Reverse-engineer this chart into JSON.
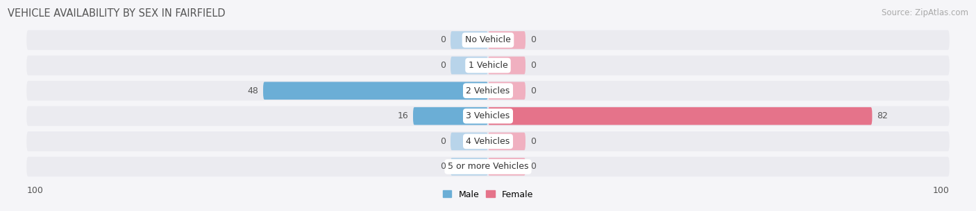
{
  "title": "VEHICLE AVAILABILITY BY SEX IN FAIRFIELD",
  "source": "Source: ZipAtlas.com",
  "categories": [
    "No Vehicle",
    "1 Vehicle",
    "2 Vehicles",
    "3 Vehicles",
    "4 Vehicles",
    "5 or more Vehicles"
  ],
  "male_values": [
    0,
    0,
    48,
    16,
    0,
    0
  ],
  "female_values": [
    0,
    0,
    0,
    82,
    0,
    0
  ],
  "male_color_full": "#6baed6",
  "male_color_stub": "#b8d4ea",
  "female_color_full": "#e5738a",
  "female_color_stub": "#f0b0c0",
  "row_bg_color": "#ebebf0",
  "fig_bg_color": "#f5f5f8",
  "max_value": 100,
  "legend_male": "Male",
  "legend_female": "Female",
  "title_fontsize": 10.5,
  "source_fontsize": 8.5,
  "label_fontsize": 9,
  "category_fontsize": 9,
  "stub_value": 8
}
